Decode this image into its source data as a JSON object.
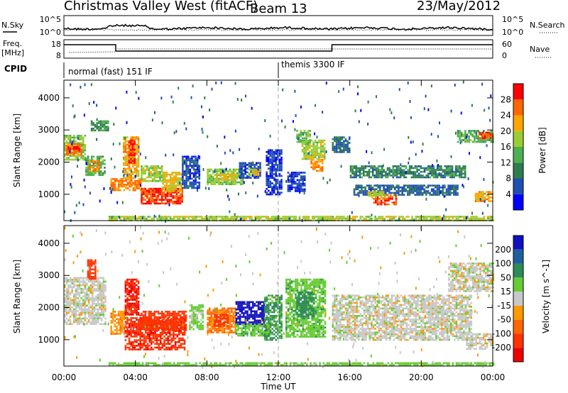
{
  "header": {
    "station": "Christmas Valley West (fitACF)",
    "beam": "Beam 13",
    "date": "23/May/2012"
  },
  "noise_panel": {
    "left_label": "N.Sky",
    "right_label": "N.Search",
    "left_ticks": [
      "10^5",
      "10^0"
    ],
    "right_ticks": [
      "10^5",
      "10^0"
    ]
  },
  "freq_panel": {
    "left_label_line1": "Freq.",
    "left_label_line2": "[MHz]",
    "right_label": "Nave",
    "left_ticks": [
      "18",
      "8"
    ],
    "right_ticks": [
      "60",
      "0"
    ]
  },
  "cpid_panel": {
    "label": "CPID",
    "segments": [
      {
        "start_hour": 0,
        "text": "normal (fast) 151 IF"
      },
      {
        "start_hour": 12,
        "text": "themis 3300 IF"
      }
    ]
  },
  "colors": {
    "power": [
      "#0000ff",
      "#1f4fb4",
      "#2e7d4f",
      "#4caf50",
      "#9acd32",
      "#ffa500",
      "#ff6600",
      "#ff0000"
    ],
    "velocity": [
      "#1010c0",
      "#1f5fa0",
      "#2e8b57",
      "#66cc33",
      "#c8c8c8",
      "#ff9900",
      "#ff6600",
      "#ff3300",
      "#ee0000"
    ]
  },
  "chart_data": [
    {
      "type": "heatmap",
      "name": "power",
      "ylabel": "Slant Range [km]",
      "xlim": [
        0,
        24
      ],
      "ylim": [
        180,
        4550
      ],
      "y_ticks": [
        "1000",
        "2000",
        "3000",
        "4000"
      ],
      "x_tick_values": [
        0,
        4,
        8,
        12,
        16,
        20,
        24
      ],
      "y_tick_values": [
        1000,
        2000,
        3000,
        4000
      ],
      "colorbar": {
        "label": "Power [dB]",
        "ticks": [
          "4",
          "8",
          "12",
          "16",
          "20",
          "24",
          "28"
        ],
        "range": [
          0,
          32
        ]
      },
      "regions": [
        {
          "t0": 0.0,
          "t1": 1.2,
          "r0": 2100,
          "r1": 2850,
          "v": 17
        },
        {
          "t0": 0.1,
          "t1": 1.0,
          "r0": 2250,
          "r1": 2600,
          "v": 24
        },
        {
          "t0": 0.2,
          "t1": 0.9,
          "r0": 2350,
          "r1": 2500,
          "v": 29
        },
        {
          "t0": 1.2,
          "t1": 2.3,
          "r0": 1600,
          "r1": 2200,
          "v": 14
        },
        {
          "t0": 1.4,
          "t1": 2.0,
          "r0": 1750,
          "r1": 2050,
          "v": 24
        },
        {
          "t0": 1.5,
          "t1": 2.5,
          "r0": 3000,
          "r1": 3300,
          "v": 12
        },
        {
          "t0": 2.6,
          "t1": 4.3,
          "r0": 1100,
          "r1": 1500,
          "v": 25
        },
        {
          "t0": 3.3,
          "t1": 4.2,
          "r0": 1500,
          "r1": 2800,
          "v": 22
        },
        {
          "t0": 3.6,
          "t1": 4.0,
          "r0": 2000,
          "r1": 2700,
          "v": 29
        },
        {
          "t0": 4.3,
          "t1": 5.5,
          "r0": 1400,
          "r1": 1900,
          "v": 18
        },
        {
          "t0": 4.3,
          "t1": 6.6,
          "r0": 700,
          "r1": 1200,
          "v": 28
        },
        {
          "t0": 5.5,
          "t1": 6.6,
          "r0": 1100,
          "r1": 1700,
          "v": 21
        },
        {
          "t0": 6.6,
          "t1": 7.6,
          "r0": 1200,
          "r1": 2200,
          "v": 6
        },
        {
          "t0": 8.0,
          "t1": 10.0,
          "r0": 1300,
          "r1": 1800,
          "v": 17
        },
        {
          "t0": 8.5,
          "t1": 9.6,
          "r0": 1450,
          "r1": 1650,
          "v": 21
        },
        {
          "t0": 9.8,
          "t1": 11.0,
          "r0": 1500,
          "r1": 2000,
          "v": 6
        },
        {
          "t0": 10.3,
          "t1": 11.0,
          "r0": 1600,
          "r1": 1800,
          "v": 20
        },
        {
          "t0": 11.3,
          "t1": 12.2,
          "r0": 1000,
          "r1": 2400,
          "v": 5
        },
        {
          "t0": 13.0,
          "t1": 13.8,
          "r0": 2600,
          "r1": 3000,
          "v": 15
        },
        {
          "t0": 13.3,
          "t1": 14.6,
          "r0": 2100,
          "r1": 2700,
          "v": 18
        },
        {
          "t0": 13.8,
          "t1": 14.5,
          "r0": 1700,
          "r1": 2100,
          "v": 24
        },
        {
          "t0": 12.5,
          "t1": 13.5,
          "r0": 1100,
          "r1": 1700,
          "v": 5
        },
        {
          "t0": 15.0,
          "t1": 16.0,
          "r0": 2300,
          "r1": 2800,
          "v": 8
        },
        {
          "t0": 16.0,
          "t1": 22.5,
          "r0": 1500,
          "r1": 1900,
          "v": 10
        },
        {
          "t0": 16.2,
          "t1": 22.0,
          "r0": 1000,
          "r1": 1300,
          "v": 7
        },
        {
          "t0": 17.3,
          "t1": 18.6,
          "r0": 700,
          "r1": 1000,
          "v": 28
        },
        {
          "t0": 17.0,
          "t1": 18.0,
          "r0": 900,
          "r1": 1100,
          "v": 19
        },
        {
          "t0": 22.0,
          "t1": 24.0,
          "r0": 2600,
          "r1": 3000,
          "v": 14
        },
        {
          "t0": 23.0,
          "t1": 24.0,
          "r0": 800,
          "r1": 1100,
          "v": 22
        },
        {
          "t0": 23.2,
          "t1": 24.0,
          "r0": 2750,
          "r1": 2950,
          "v": 27
        },
        {
          "t0": 2.5,
          "t1": 24.0,
          "r0": 200,
          "r1": 330,
          "v": 18
        }
      ]
    },
    {
      "type": "heatmap",
      "name": "velocity",
      "ylabel": "Slant Range [km]",
      "xlabel": "Time UT",
      "xlim": [
        0,
        24
      ],
      "ylim": [
        180,
        4550
      ],
      "x_ticks": [
        "00:00",
        "04:00",
        "08:00",
        "12:00",
        "16:00",
        "20:00",
        "00:00"
      ],
      "y_ticks": [
        "1000",
        "2000",
        "3000",
        "4000"
      ],
      "x_tick_values": [
        0,
        4,
        8,
        12,
        16,
        20,
        24
      ],
      "y_tick_values": [
        1000,
        2000,
        3000,
        4000
      ],
      "colorbar": {
        "label": "Velocity [m s^-1]",
        "ticks": [
          "200",
          "100",
          "50",
          "15",
          "-15",
          "-50",
          "-100",
          "-200"
        ],
        "range": [
          -250,
          250
        ]
      },
      "regions": [
        {
          "t0": 0.0,
          "t1": 2.3,
          "r0": 1500,
          "r1": 2950,
          "v": 0
        },
        {
          "t0": 1.3,
          "t1": 1.8,
          "r0": 2900,
          "r1": 3500,
          "v": -160
        },
        {
          "t0": 2.6,
          "t1": 3.4,
          "r0": 1200,
          "r1": 1900,
          "v": -40
        },
        {
          "t0": 3.4,
          "t1": 4.2,
          "r0": 1800,
          "r1": 2900,
          "v": -200
        },
        {
          "t0": 3.4,
          "t1": 6.8,
          "r0": 700,
          "r1": 1700,
          "v": -190
        },
        {
          "t0": 4.2,
          "t1": 6.8,
          "r0": 1300,
          "r1": 1900,
          "v": -170
        },
        {
          "t0": 7.0,
          "t1": 7.8,
          "r0": 1300,
          "r1": 2100,
          "v": 25
        },
        {
          "t0": 8.0,
          "t1": 9.6,
          "r0": 1200,
          "r1": 2000,
          "v": -55
        },
        {
          "t0": 8.4,
          "t1": 9.2,
          "r0": 1400,
          "r1": 1800,
          "v": -120
        },
        {
          "t0": 9.6,
          "t1": 11.2,
          "r0": 1500,
          "r1": 2200,
          "v": 220
        },
        {
          "t0": 9.6,
          "t1": 11.5,
          "r0": 1100,
          "r1": 1500,
          "v": 40
        },
        {
          "t0": 11.2,
          "t1": 12.2,
          "r0": 1000,
          "r1": 2400,
          "v": 60
        },
        {
          "t0": 12.4,
          "t1": 14.6,
          "r0": 1100,
          "r1": 2900,
          "v": 35
        },
        {
          "t0": 13.0,
          "t1": 14.0,
          "r0": 1700,
          "r1": 2500,
          "v": 80
        },
        {
          "t0": 15.0,
          "t1": 22.8,
          "r0": 1000,
          "r1": 2400,
          "v": 0
        },
        {
          "t0": 21.5,
          "t1": 24.0,
          "r0": 2500,
          "r1": 3400,
          "v": 0
        },
        {
          "t0": 22.5,
          "t1": 24.0,
          "r0": 700,
          "r1": 1200,
          "v": 0
        },
        {
          "t0": 2.5,
          "t1": 24.0,
          "r0": 190,
          "r1": 300,
          "v": 30
        }
      ]
    }
  ]
}
